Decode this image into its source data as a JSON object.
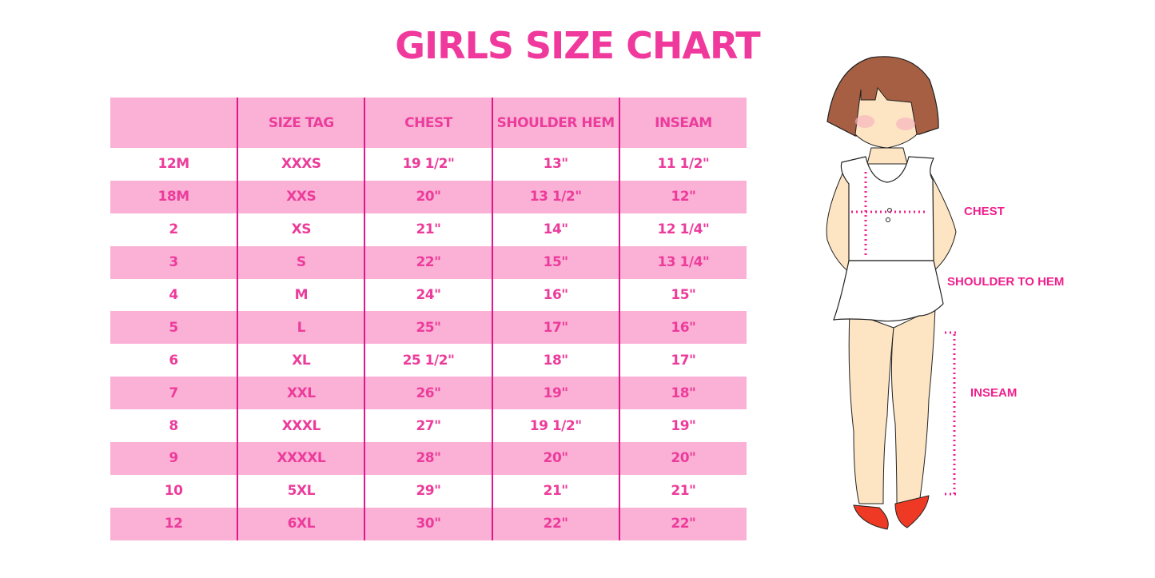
{
  "title": "GIRLS SIZE CHART",
  "table": {
    "headers": [
      "",
      "SIZE TAG",
      "CHEST",
      "SHOULDER HEM",
      "INSEAM"
    ],
    "rows": [
      [
        "12M",
        "XXXS",
        "19 1/2\"",
        "13\"",
        "11 1/2\""
      ],
      [
        "18M",
        "XXS",
        "20\"",
        "13 1/2\"",
        "12\""
      ],
      [
        "2",
        "XS",
        "21\"",
        "14\"",
        "12 1/4\""
      ],
      [
        "3",
        "S",
        "22\"",
        "15\"",
        "13 1/4\""
      ],
      [
        "4",
        "M",
        "24\"",
        "16\"",
        "15\""
      ],
      [
        "5",
        "L",
        "25\"",
        "17\"",
        "16\""
      ],
      [
        "6",
        "XL",
        "25 1/2\"",
        "18\"",
        "17\""
      ],
      [
        "7",
        "XXL",
        "26\"",
        "19\"",
        "18\""
      ],
      [
        "8",
        "XXXL",
        "27\"",
        "19 1/2\"",
        "19\""
      ],
      [
        "9",
        "XXXXL",
        "28\"",
        "20\"",
        "20\""
      ],
      [
        "10",
        "5XL",
        "29\"",
        "21\"",
        "21\""
      ],
      [
        "12",
        "6XL",
        "30\"",
        "22\"",
        "22\""
      ]
    ]
  },
  "illustration": {
    "labels": {
      "chest": "CHEST",
      "shoulder_to_hem": "SHOULDER TO HEM",
      "inseam": "INSEAM"
    }
  },
  "colors": {
    "accent": "#f0399c",
    "row_band": "#fbb1d6",
    "divider": "#e0168a"
  }
}
